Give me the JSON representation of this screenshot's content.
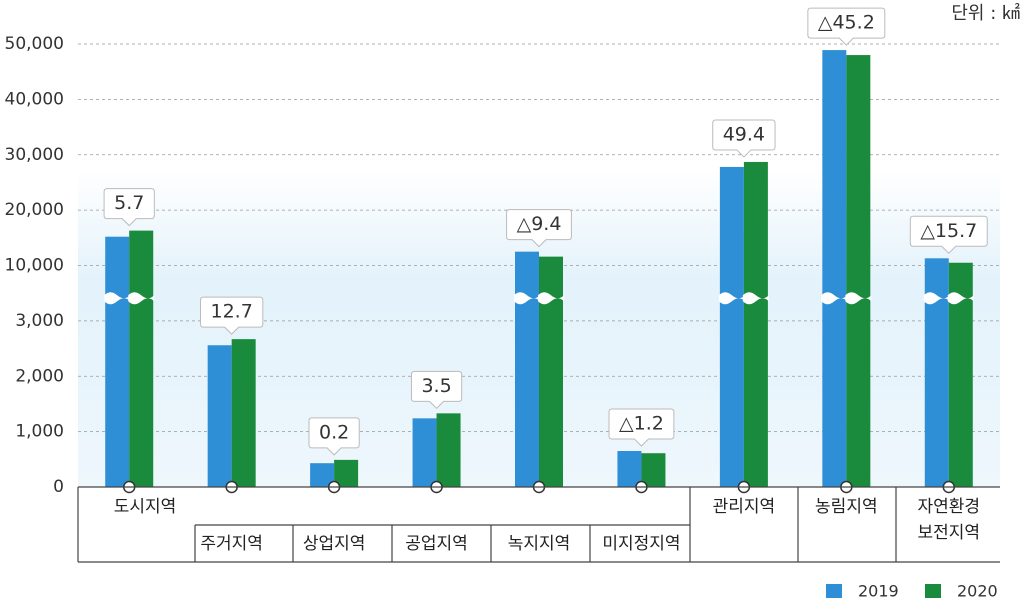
{
  "chart_data": {
    "type": "bar",
    "unit": "단위 : ㎢",
    "categories": [
      "도시지역",
      "주거지역",
      "상업지역",
      "공업지역",
      "녹지지역",
      "미지정지역",
      "관리지역",
      "농림지역",
      "자연환경\n보전지역"
    ],
    "series": [
      {
        "name": "2019",
        "color": "#2f8fd6",
        "values": [
          15200,
          2560,
          430,
          1240,
          12500,
          650,
          27800,
          48900,
          11300
        ]
      },
      {
        "name": "2020",
        "color": "#1a8a3c",
        "values": [
          16300,
          2670,
          490,
          1330,
          11600,
          610,
          28700,
          48000,
          10500
        ]
      }
    ],
    "annotations": [
      "5.7",
      "12.7",
      "0.2",
      "3.5",
      "△9.4",
      "△1.2",
      "49.4",
      "△45.2",
      "△15.7"
    ],
    "ylim": [
      0,
      50000
    ],
    "yticks": [
      0,
      {
        "value": 1000,
        "label": "1,000"
      },
      {
        "value": 2000,
        "label": "2,000"
      },
      {
        "value": 3000,
        "label": "3,000"
      },
      {
        "value": 10000,
        "label": "10,000"
      },
      {
        "value": 20000,
        "label": "20,000"
      },
      {
        "value": 30000,
        "label": "30,000"
      },
      {
        "value": 40000,
        "label": "40,000"
      },
      {
        "value": 50000,
        "label": "50,000"
      }
    ],
    "grid": true
  }
}
